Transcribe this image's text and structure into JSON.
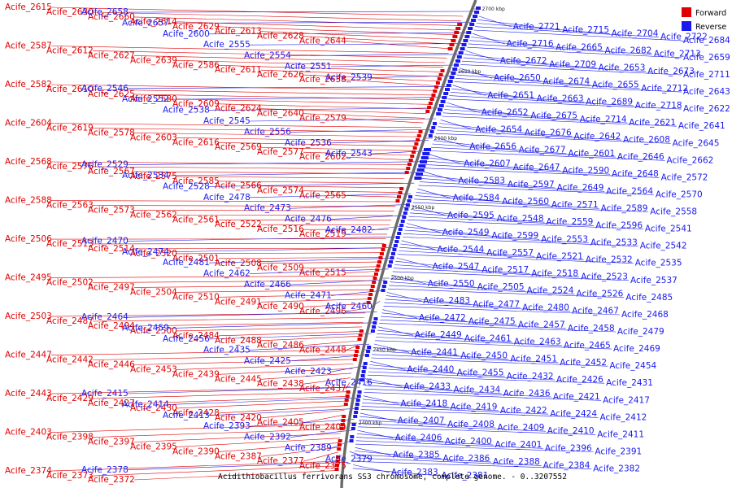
{
  "caption": "Acidithiobacillus ferrivorans SS3 chromosome, complete genome. - 0..3207552",
  "legend": {
    "forward": {
      "label": "Forward",
      "color": "#e00000"
    },
    "reverse": {
      "label": "Reverse",
      "color": "#1a1aee"
    }
  },
  "ticks": [
    "2700 kbp",
    "2650 kbp",
    "2600 kbp",
    "2550 kbp",
    "2500 kbp",
    "2450 kbp",
    "2400 kbp"
  ],
  "forward_labels": [
    "Acife_2615",
    "Acife_2630",
    "Acife_2660",
    "Acife_2614",
    "Acife_2629",
    "Acife_2613",
    "Acife_2628",
    "Acife_2644",
    "Acife_2587",
    "Acife_2612",
    "Acife_2627",
    "Acife_2639",
    "Acife_2586",
    "Acife_2611",
    "Acife_2626",
    "Acife_2638",
    "Acife_2582",
    "Acife_2610",
    "Acife_2625",
    "Acife_2580",
    "Acife_2609",
    "Acife_2624",
    "Acife_2640",
    "Acife_2579",
    "Acife_2604",
    "Acife_2619",
    "Acife_2578",
    "Acife_2603",
    "Acife_2616",
    "Acife_2569",
    "Acife_2577",
    "Acife_2602",
    "Acife_2568",
    "Acife_2576",
    "Acife_2567",
    "Acife_2575",
    "Acife_2585",
    "Acife_2566",
    "Acife_2574",
    "Acife_2565",
    "Acife_2588",
    "Acife_2563",
    "Acife_2573",
    "Acife_2562",
    "Acife_2561",
    "Acife_2522",
    "Acife_2516",
    "Acife_2519",
    "Acife_2506",
    "Acife_2513",
    "Acife_2514",
    "Acife_2520",
    "Acife_2501",
    "Acife_2508",
    "Acife_2509",
    "Acife_2515",
    "Acife_2495",
    "Acife_2502",
    "Acife_2497",
    "Acife_2504",
    "Acife_2510",
    "Acife_2491",
    "Acife_2490",
    "Acife_2496",
    "Acife_2503",
    "Acife_2487",
    "Acife_2494",
    "Acife_2500",
    "Acife_2484",
    "Acife_2488",
    "Acife_2486",
    "Acife_2448",
    "Acife_2447",
    "Acife_2442",
    "Acife_2446",
    "Acife_2453",
    "Acife_2439",
    "Acife_2445",
    "Acife_2438",
    "Acife_2437",
    "Acife_2443",
    "Acife_2429",
    "Acife_2427",
    "Acife_2430",
    "Acife_2428",
    "Acife_2420",
    "Acife_2405",
    "Acife_2404",
    "Acife_2403",
    "Acife_2398",
    "Acife_2397",
    "Acife_2395",
    "Acife_2390",
    "Acife_2387",
    "Acife_2377",
    "Acife_2375",
    "Acife_2374",
    "Acife_2373",
    "Acife_2372"
  ],
  "reverse_labels": [
    "Acife_2658",
    "Acife_2657",
    "Acife_2600",
    "Acife_2555",
    "Acife_2554",
    "Acife_2551",
    "Acife_2539",
    "Acife_2546",
    "Acife_2552",
    "Acife_2538",
    "Acife_2545",
    "Acife_2556",
    "Acife_2536",
    "Acife_2543",
    "Acife_2529",
    "Acife_2534",
    "Acife_2528",
    "Acife_2478",
    "Acife_2473",
    "Acife_2476",
    "Acife_2482",
    "Acife_2470",
    "Acife_2474",
    "Acife_2481",
    "Acife_2462",
    "Acife_2466",
    "Acife_2471",
    "Acife_2460",
    "Acife_2464",
    "Acife_2459",
    "Acife_2456",
    "Acife_2435",
    "Acife_2425",
    "Acife_2423",
    "Acife_2416",
    "Acife_2415",
    "Acife_2414",
    "Acife_2413",
    "Acife_2393",
    "Acife_2392",
    "Acife_2389",
    "Acife_2379",
    "Acife_2378",
    "Acife_2721",
    "Acife_2715",
    "Acife_2704",
    "Acife_2722",
    "Acife_2684",
    "Acife_2716",
    "Acife_2665",
    "Acife_2682",
    "Acife_2713",
    "Acife_2659",
    "Acife_2672",
    "Acife_2709",
    "Acife_2653",
    "Acife_2673",
    "Acife_2711",
    "Acife_2650",
    "Acife_2674",
    "Acife_2655",
    "Acife_2712",
    "Acife_2643",
    "Acife_2651",
    "Acife_2663",
    "Acife_2689",
    "Acife_2718",
    "Acife_2622",
    "Acife_2652",
    "Acife_2675",
    "Acife_2714",
    "Acife_2621",
    "Acife_2641",
    "Acife_2654",
    "Acife_2676",
    "Acife_2642",
    "Acife_2608",
    "Acife_2645",
    "Acife_2656",
    "Acife_2677",
    "Acife_2601",
    "Acife_2646",
    "Acife_2662",
    "Acife_2607",
    "Acife_2647",
    "Acife_2590",
    "Acife_2648",
    "Acife_2572",
    "Acife_2583",
    "Acife_2597",
    "Acife_2649",
    "Acife_2564",
    "Acife_2570",
    "Acife_2584",
    "Acife_2560",
    "Acife_2571",
    "Acife_2589",
    "Acife_2558",
    "Acife_2595",
    "Acife_2548",
    "Acife_2559",
    "Acife_2596",
    "Acife_2541",
    "Acife_2549",
    "Acife_2599",
    "Acife_2553",
    "Acife_2533",
    "Acife_2542",
    "Acife_2544",
    "Acife_2557",
    "Acife_2521",
    "Acife_2532",
    "Acife_2535",
    "Acife_2547",
    "Acife_2517",
    "Acife_2518",
    "Acife_2523",
    "Acife_2537",
    "Acife_2550",
    "Acife_2505",
    "Acife_2524",
    "Acife_2526",
    "Acife_2485",
    "Acife_2483",
    "Acife_2477",
    "Acife_2480",
    "Acife_2467",
    "Acife_2468",
    "Acife_2472",
    "Acife_2475",
    "Acife_2457",
    "Acife_2458",
    "Acife_2479",
    "Acife_2449",
    "Acife_2461",
    "Acife_2463",
    "Acife_2465",
    "Acife_2469",
    "Acife_2441",
    "Acife_2450",
    "Acife_2451",
    "Acife_2452",
    "Acife_2454",
    "Acife_2440",
    "Acife_2455",
    "Acife_2432",
    "Acife_2426",
    "Acife_2431",
    "Acife_2433",
    "Acife_2434",
    "Acife_2436",
    "Acife_2421",
    "Acife_2417",
    "Acife_2418",
    "Acife_2419",
    "Acife_2422",
    "Acife_2424",
    "Acife_2412",
    "Acife_2407",
    "Acife_2408",
    "Acife_2409",
    "Acife_2410",
    "Acife_2411",
    "Acife_2406",
    "Acife_2400",
    "Acife_2401",
    "Acife_2396",
    "Acife_2391",
    "Acife_2385",
    "Acife_2386",
    "Acife_2388",
    "Acife_2384",
    "Acife_2382",
    "Acife_2383",
    "Acife_2381"
  ]
}
